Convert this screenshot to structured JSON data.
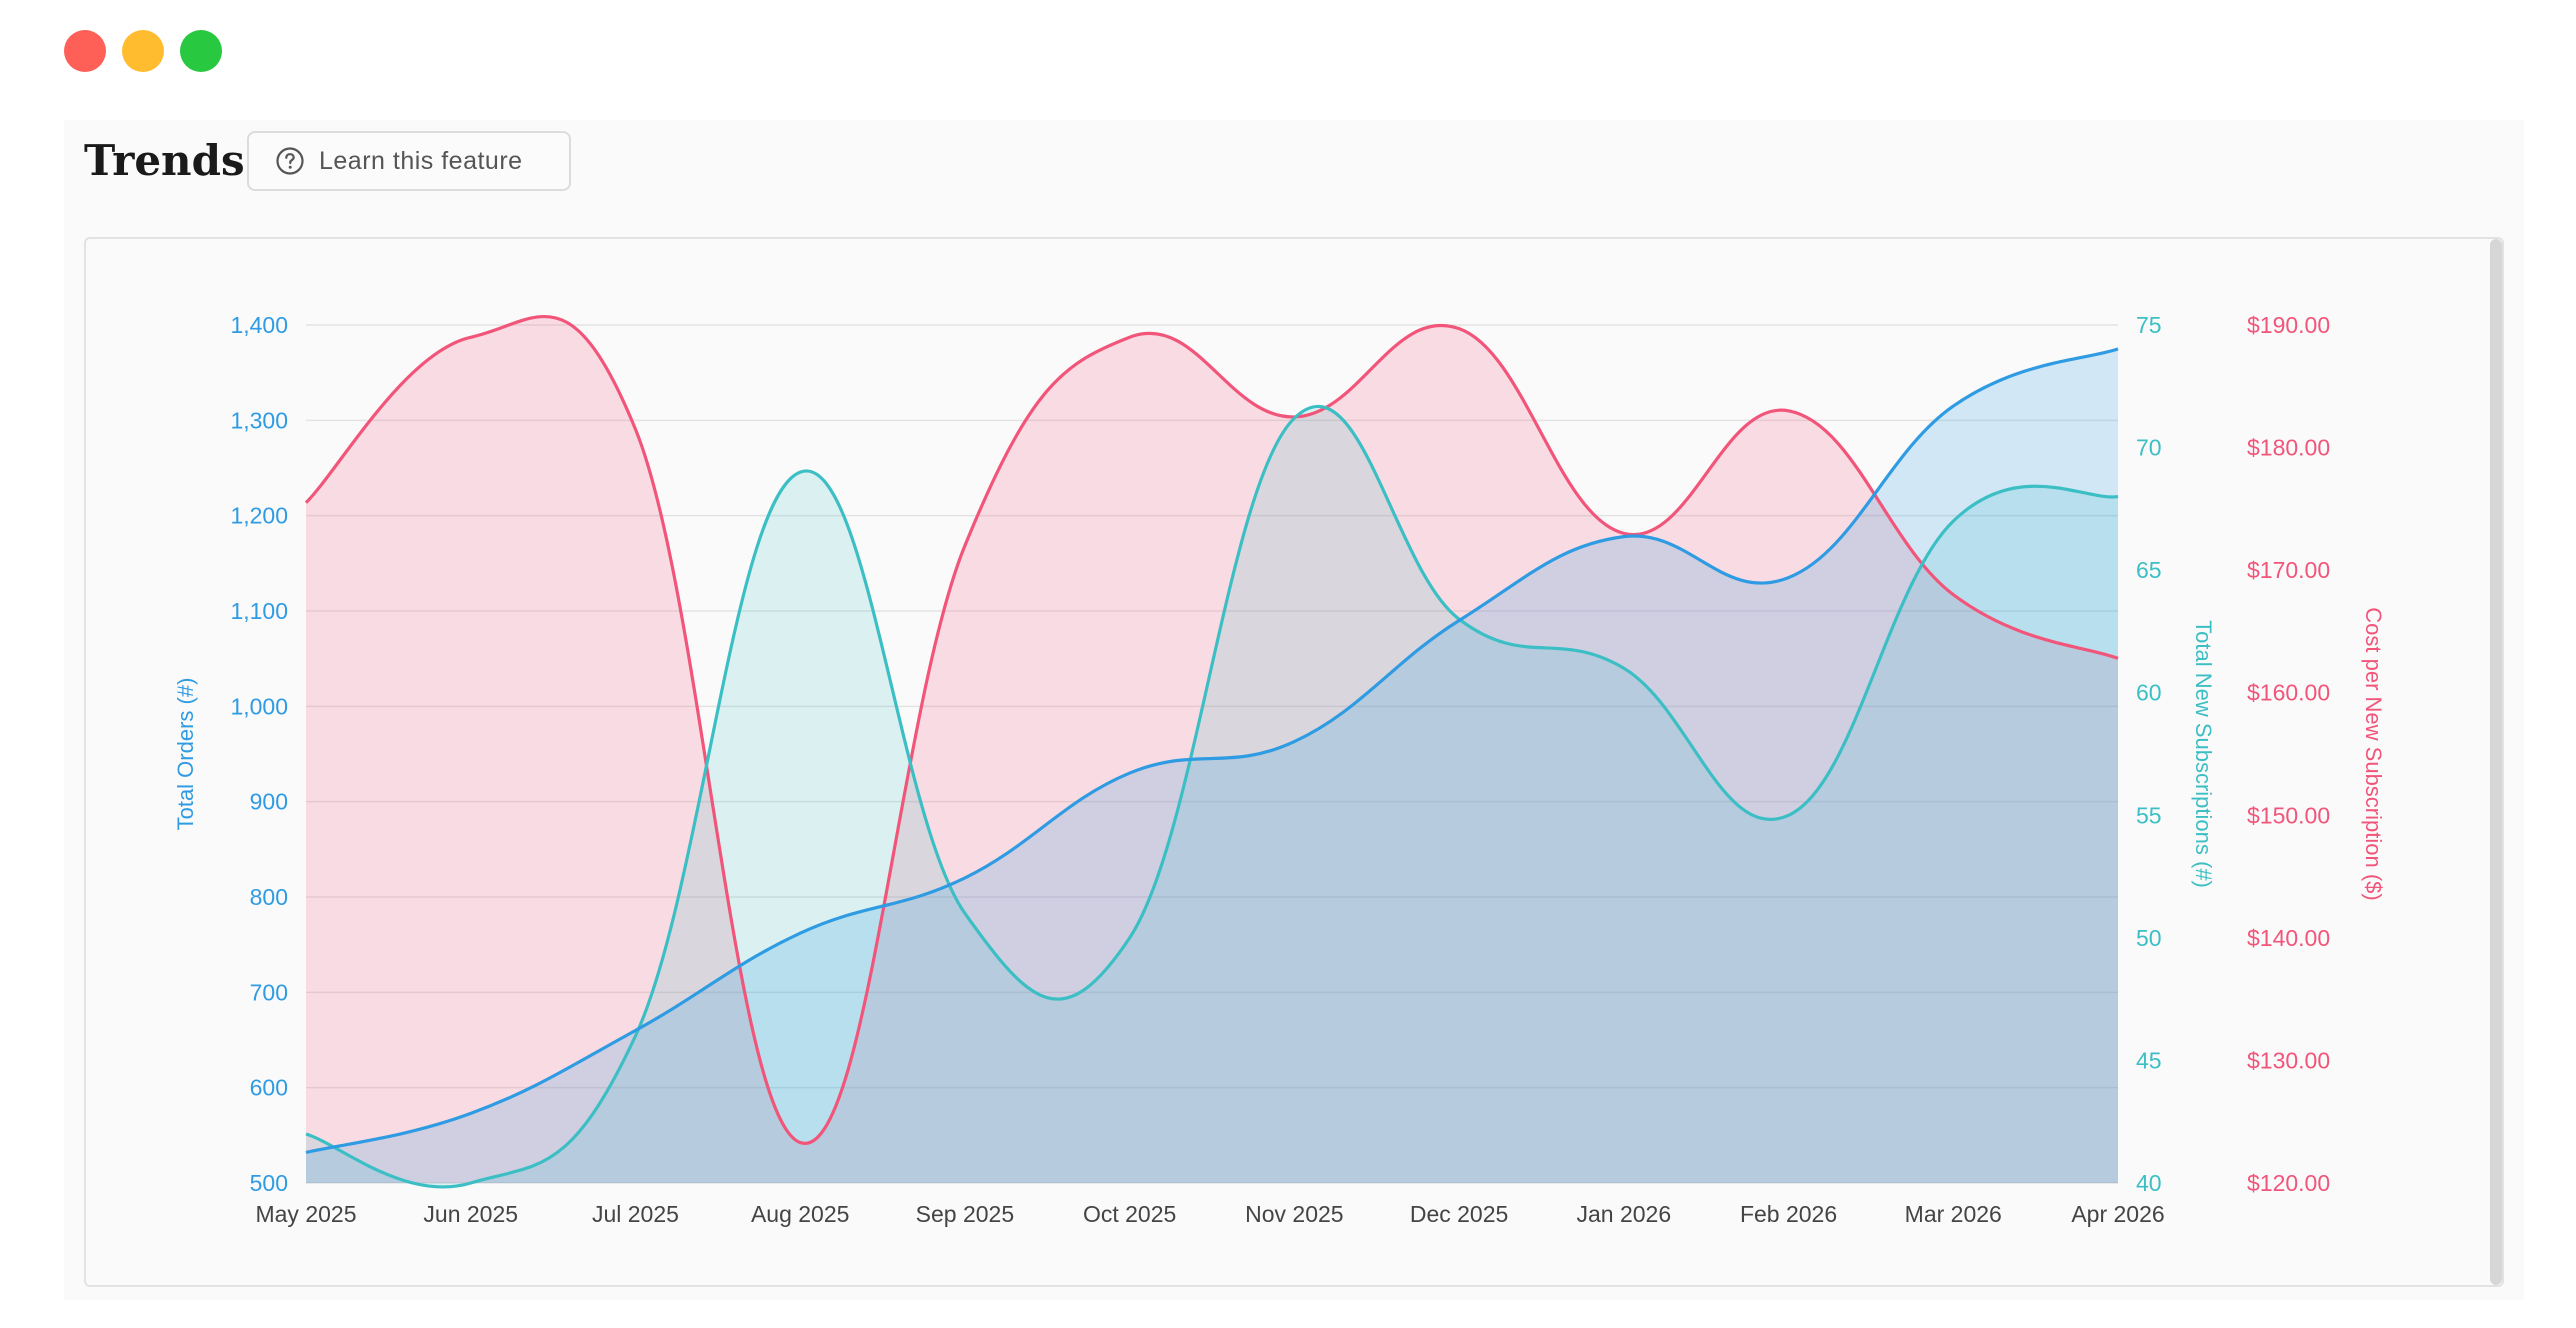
{
  "window_controls": {
    "close_color": "#fe5f57",
    "minimize_color": "#febc2e",
    "maximize_color": "#28c840"
  },
  "header": {
    "title": "Trends",
    "learn_button_label": "Learn this feature",
    "learn_button_icon": "question-circle-icon"
  },
  "colors": {
    "orders": "#2f9be2",
    "subscriptions": "#3cbfc4",
    "cost": "#f2557a"
  },
  "chart_data": {
    "type": "area",
    "categories": [
      "May 2025",
      "Jun 2025",
      "Jul 2025",
      "Aug 2025",
      "Sep 2025",
      "Oct 2025",
      "Nov 2025",
      "Dec 2025",
      "Jan 2026",
      "Feb 2026",
      "Mar 2026",
      "Apr 2026"
    ],
    "series": [
      {
        "name": "Total Orders (#)",
        "axis": "left",
        "color": "#2f9be2",
        "values": [
          532,
          573,
          660,
          762,
          820,
          930,
          963,
          1090,
          1178,
          1135,
          1315,
          1375
        ]
      },
      {
        "name": "Total New Subscriptions (#)",
        "axis": "right1",
        "color": "#3cbfc4",
        "values": [
          42,
          40,
          46,
          69,
          51,
          50,
          71.2,
          63,
          61,
          55,
          67,
          68
        ]
      },
      {
        "name": "Cost per New Subscription ($)",
        "axis": "right2",
        "color": "#f2557a",
        "values": [
          175.5,
          189,
          181.5,
          123.3,
          172,
          189,
          182.5,
          189.7,
          173,
          183,
          168,
          162.8
        ]
      }
    ],
    "axes": {
      "left": {
        "label": "Total Orders (#)",
        "ylim": [
          500,
          1400
        ],
        "ticks": [
          "1,400",
          "1,300",
          "1,200",
          "1,100",
          "1,000",
          "900",
          "800",
          "700",
          "600",
          "500"
        ]
      },
      "right1": {
        "label": "Total New Subscriptions (#)",
        "ylim": [
          40,
          75
        ],
        "ticks": [
          "75",
          "70",
          "65",
          "60",
          "55",
          "50",
          "45",
          "40"
        ]
      },
      "right2": {
        "label": "Cost per New Subscription ($)",
        "ylim": [
          120,
          190
        ],
        "ticks": [
          "$190.00",
          "$180.00",
          "$170.00",
          "$160.00",
          "$150.00",
          "$140.00",
          "$130.00",
          "$120.00"
        ]
      }
    },
    "grid": true,
    "legend": "none"
  }
}
